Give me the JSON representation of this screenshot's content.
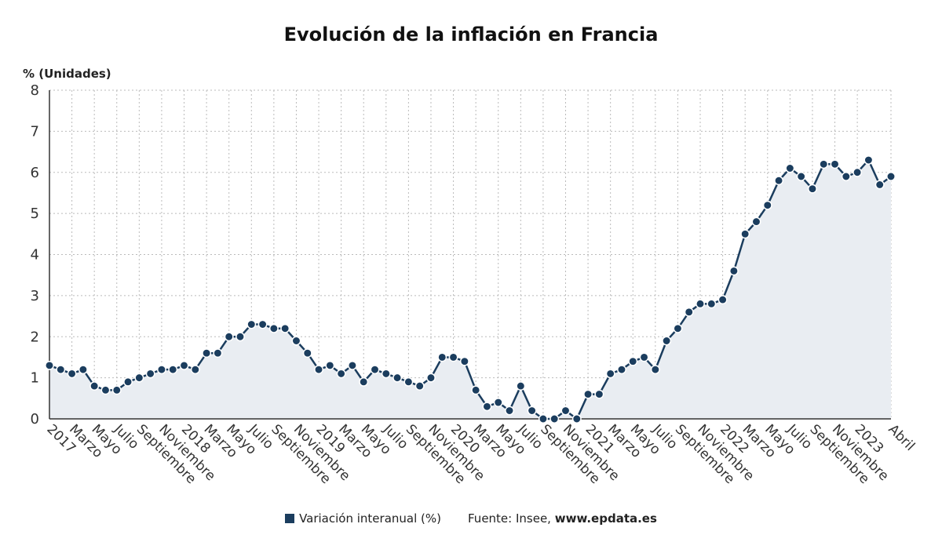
{
  "chart_data": {
    "type": "line",
    "title": "Evolución de la inflación en Francia",
    "ylabel": "% (Unidades)",
    "ylim": [
      0,
      8
    ],
    "yticks": [
      0,
      1,
      2,
      3,
      4,
      5,
      6,
      7,
      8
    ],
    "grid": true,
    "area_fill": true,
    "colors": {
      "line": "#1b3d5e",
      "marker": "#1b3d5e",
      "area": "#e9edf2",
      "grid": "#bbbbbb"
    },
    "x_tick_labels": [
      "2017",
      "Marzo",
      "Mayo",
      "Julio",
      "Septiembre",
      "Noviembre",
      "2018",
      "Marzo",
      "Mayo",
      "Julio",
      "Septiembre",
      "Noviembre",
      "2019",
      "Marzo",
      "Mayo",
      "Julio",
      "Septiembre",
      "Noviembre",
      "2020",
      "Marzo",
      "Mayo",
      "Julio",
      "Septiembre",
      "Noviembre",
      "2021",
      "Marzo",
      "Mayo",
      "Julio",
      "Septiembre",
      "Noviembre",
      "2022",
      "Marzo",
      "Mayo",
      "Julio",
      "Septiembre",
      "Noviembre",
      "2023",
      "Abril"
    ],
    "x_tick_positions": [
      0,
      2,
      4,
      6,
      8,
      10,
      12,
      14,
      16,
      18,
      20,
      22,
      24,
      26,
      28,
      30,
      32,
      34,
      36,
      38,
      40,
      42,
      44,
      46,
      48,
      50,
      52,
      54,
      56,
      58,
      60,
      62,
      64,
      66,
      68,
      70,
      72,
      75
    ],
    "x": [
      "2017-01",
      "2017-02",
      "2017-03",
      "2017-04",
      "2017-05",
      "2017-06",
      "2017-07",
      "2017-08",
      "2017-09",
      "2017-10",
      "2017-11",
      "2017-12",
      "2018-01",
      "2018-02",
      "2018-03",
      "2018-04",
      "2018-05",
      "2018-06",
      "2018-07",
      "2018-08",
      "2018-09",
      "2018-10",
      "2018-11",
      "2018-12",
      "2019-01",
      "2019-02",
      "2019-03",
      "2019-04",
      "2019-05",
      "2019-06",
      "2019-07",
      "2019-08",
      "2019-09",
      "2019-10",
      "2019-11",
      "2019-12",
      "2020-01",
      "2020-02",
      "2020-03",
      "2020-04",
      "2020-05",
      "2020-06",
      "2020-07",
      "2020-08",
      "2020-09",
      "2020-10",
      "2020-11",
      "2020-12",
      "2021-01",
      "2021-02",
      "2021-03",
      "2021-04",
      "2021-05",
      "2021-06",
      "2021-07",
      "2021-08",
      "2021-09",
      "2021-10",
      "2021-11",
      "2021-12",
      "2022-01",
      "2022-02",
      "2022-03",
      "2022-04",
      "2022-05",
      "2022-06",
      "2022-07",
      "2022-08",
      "2022-09",
      "2022-10",
      "2022-11",
      "2022-12",
      "2023-01",
      "2023-02",
      "2023-03",
      "2023-04"
    ],
    "series": [
      {
        "name": "Variación interanual (%)",
        "values": [
          1.3,
          1.2,
          1.1,
          1.2,
          0.8,
          0.7,
          0.7,
          0.9,
          1.0,
          1.1,
          1.2,
          1.2,
          1.3,
          1.2,
          1.6,
          1.6,
          2.0,
          2.0,
          2.3,
          2.3,
          2.2,
          2.2,
          1.9,
          1.6,
          1.2,
          1.3,
          1.1,
          1.3,
          0.9,
          1.2,
          1.1,
          1.0,
          0.9,
          0.8,
          1.0,
          1.5,
          1.5,
          1.4,
          0.7,
          0.3,
          0.4,
          0.2,
          0.8,
          0.2,
          0.0,
          0.0,
          0.2,
          0.0,
          0.6,
          0.6,
          1.1,
          1.2,
          1.4,
          1.5,
          1.2,
          1.9,
          2.2,
          2.6,
          2.8,
          2.8,
          2.9,
          3.6,
          4.5,
          4.8,
          5.2,
          5.8,
          6.1,
          5.9,
          5.6,
          6.2,
          6.2,
          5.9,
          6.0,
          6.3,
          5.7,
          5.9
        ]
      }
    ]
  },
  "legend": {
    "series_label": "Variación interanual (%)",
    "source_prefix": "Fuente: Insee,",
    "source_url": "www.epdata.es"
  }
}
